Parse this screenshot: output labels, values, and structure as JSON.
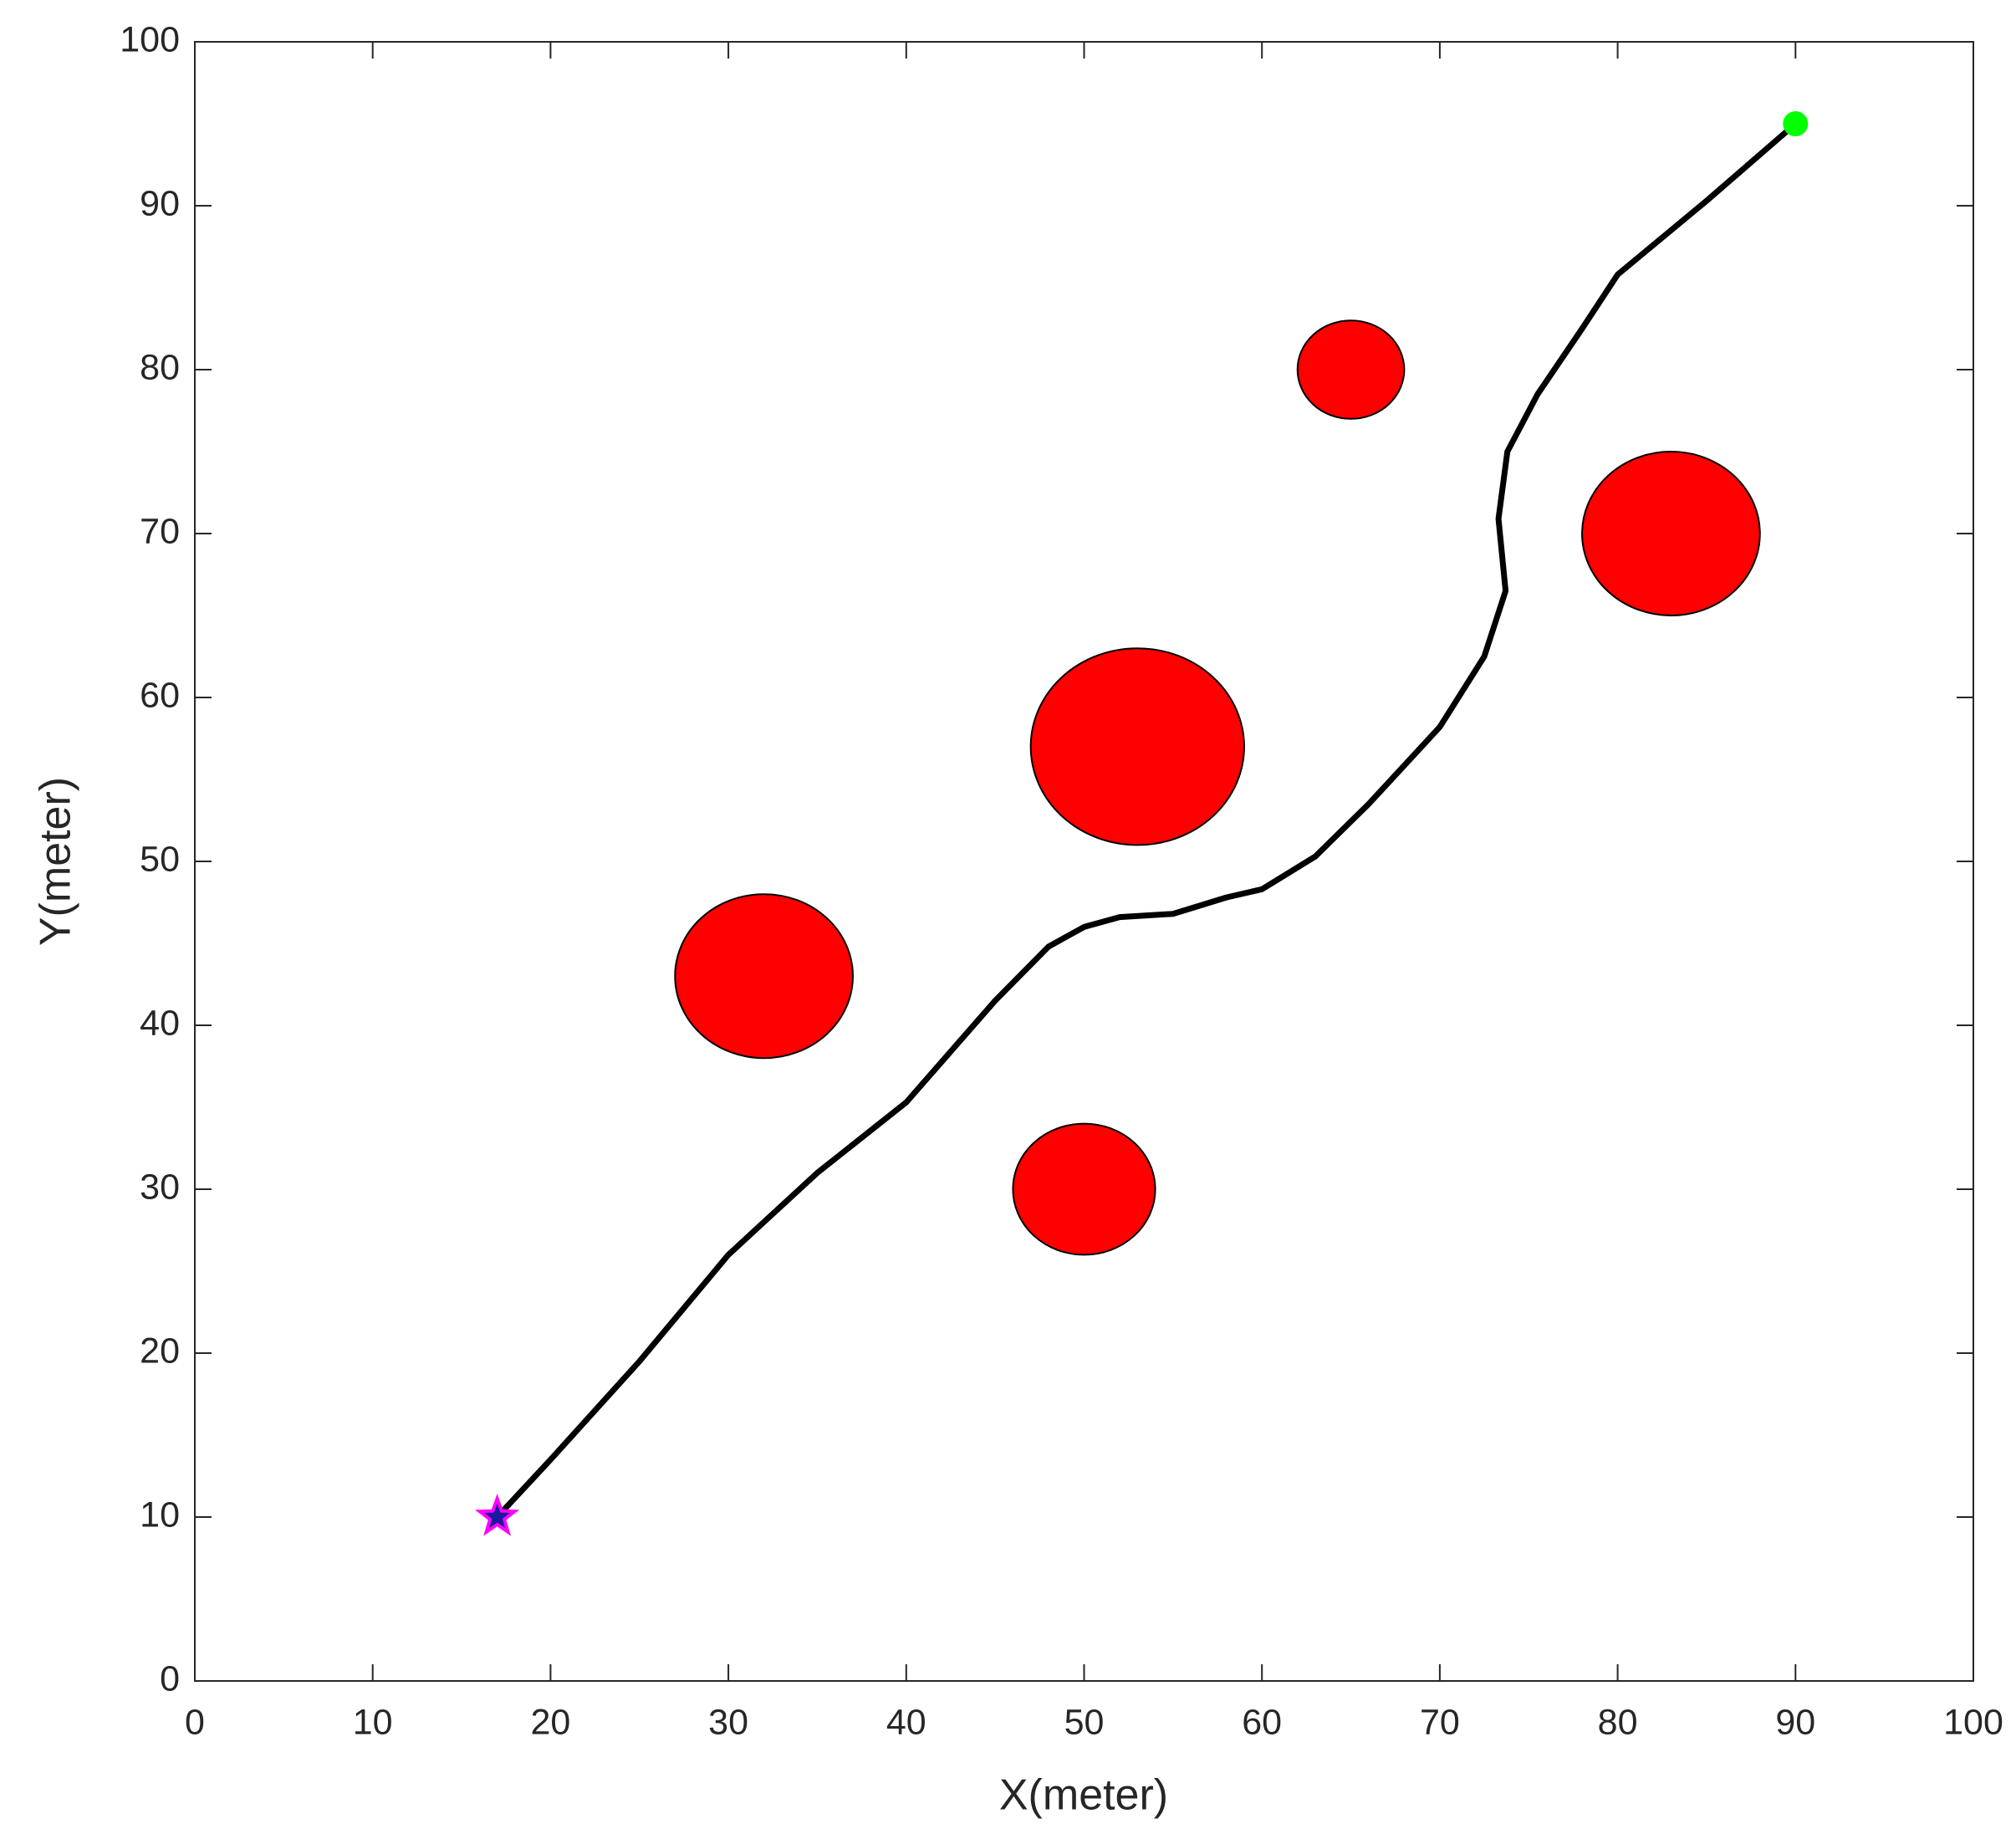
{
  "chart_data": {
    "type": "line",
    "xlabel": "X(meter)",
    "ylabel": "Y(meter)",
    "xlim": [
      0,
      100
    ],
    "ylim": [
      0,
      100
    ],
    "xticks": [
      0,
      10,
      20,
      30,
      40,
      50,
      60,
      70,
      80,
      90,
      100
    ],
    "yticks": [
      0,
      10,
      20,
      30,
      40,
      50,
      60,
      70,
      80,
      90,
      100
    ],
    "x": [
      17,
      20,
      25,
      30,
      35,
      40,
      45,
      48,
      50,
      52,
      55,
      58,
      60,
      63,
      66,
      70,
      72.5,
      73.7,
      73.3,
      73.8,
      75.5,
      78,
      80,
      85,
      90
    ],
    "series": [
      {
        "color": "#000000",
        "values": [
          10,
          13.5,
          19.5,
          26,
          31,
          35.3,
          41.5,
          44.8,
          46,
          46.6,
          46.8,
          47.8,
          48.3,
          50.3,
          53.5,
          58.2,
          62.5,
          66.5,
          70.9,
          75,
          78.5,
          82.5,
          85.8,
          90.3,
          95
        ]
      }
    ],
    "start": {
      "x": 17,
      "y": 10,
      "color": "#ff00ff"
    },
    "goal": {
      "x": 90,
      "y": 95,
      "color": "#00ff00"
    },
    "obstacle_color": "#ff0000",
    "obstacles": [
      {
        "x": 32,
        "y": 43,
        "r": 5
      },
      {
        "x": 50,
        "y": 30,
        "r": 4
      },
      {
        "x": 53,
        "y": 57,
        "r": 6
      },
      {
        "x": 65,
        "y": 80,
        "r": 3
      },
      {
        "x": 83,
        "y": 70,
        "r": 5
      }
    ]
  }
}
